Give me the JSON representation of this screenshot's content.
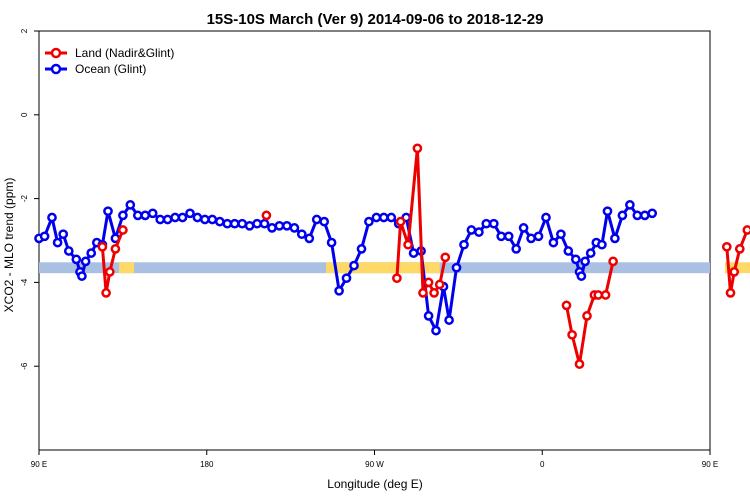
{
  "chart_data": {
    "type": "line",
    "title": "15S-10S March (Ver 9)   2014-09-06 to 2018-12-29",
    "xlabel": "Longitude (deg E)",
    "ylabel": "XCO2 - MLO trend (ppm)",
    "xlim": [
      90,
      450
    ],
    "ylim": [
      -8,
      2
    ],
    "x_ticks": [
      {
        "value": 90,
        "label": "90 E"
      },
      {
        "value": 180,
        "label": "180"
      },
      {
        "value": 270,
        "label": "90 W"
      },
      {
        "value": 360,
        "label": "0"
      },
      {
        "value": 450,
        "label": "90 E"
      },
      {
        "value": 540,
        "label": "180"
      }
    ],
    "y_ticks": [
      {
        "value": 2,
        "label": "2"
      },
      {
        "value": 0,
        "label": "0"
      },
      {
        "value": -2,
        "label": "-2"
      },
      {
        "value": -4,
        "label": "-4"
      },
      {
        "value": -6,
        "label": "-6"
      }
    ],
    "legend_position": "top-left",
    "series": [
      {
        "name": "Land (Nadir&Glint)",
        "color": "#ee0000",
        "segments": [
          [
            [
              124,
              -3.15
            ],
            [
              126,
              -4.25
            ],
            [
              128,
              -3.75
            ],
            [
              131,
              -3.2
            ],
            [
              135,
              -2.75
            ]
          ],
          [
            [
              212,
              -2.4
            ]
          ],
          [
            [
              282,
              -3.9
            ],
            [
              284,
              -2.55
            ],
            [
              288,
              -3.1
            ],
            [
              293,
              -0.8
            ],
            [
              296,
              -4.25
            ],
            [
              299,
              -4.0
            ],
            [
              302,
              -4.25
            ],
            [
              305,
              -4.05
            ],
            [
              308,
              -3.4
            ]
          ],
          [
            [
              373,
              -4.55
            ],
            [
              376,
              -5.25
            ],
            [
              380,
              -5.95
            ],
            [
              384,
              -4.8
            ],
            [
              388,
              -4.3
            ],
            [
              390,
              -4.3
            ],
            [
              394,
              -4.3
            ],
            [
              398,
              -3.5
            ]
          ],
          [
            [
              459,
              -3.15
            ],
            [
              461,
              -4.25
            ],
            [
              463,
              -3.75
            ],
            [
              466,
              -3.2
            ],
            [
              470,
              -2.75
            ]
          ]
        ]
      },
      {
        "name": "Ocean (Glint)",
        "color": "#0000ee",
        "segments": [
          [
            [
              90,
              -2.95
            ],
            [
              93,
              -2.9
            ],
            [
              97,
              -2.45
            ],
            [
              100,
              -3.05
            ],
            [
              103,
              -2.85
            ],
            [
              106,
              -3.25
            ],
            [
              110,
              -3.45
            ],
            [
              112,
              -3.75
            ],
            [
              113,
              -3.85
            ],
            [
              115,
              -3.5
            ],
            [
              118,
              -3.3
            ],
            [
              121,
              -3.05
            ],
            [
              124,
              -3.1
            ],
            [
              127,
              -2.3
            ],
            [
              131,
              -2.95
            ],
            [
              135,
              -2.4
            ],
            [
              139,
              -2.15
            ],
            [
              143,
              -2.4
            ],
            [
              147,
              -2.4
            ],
            [
              151,
              -2.35
            ],
            [
              155,
              -2.5
            ],
            [
              159,
              -2.5
            ],
            [
              163,
              -2.45
            ],
            [
              167,
              -2.45
            ],
            [
              171,
              -2.35
            ],
            [
              175,
              -2.45
            ],
            [
              179,
              -2.5
            ],
            [
              183,
              -2.5
            ],
            [
              187,
              -2.55
            ],
            [
              191,
              -2.6
            ],
            [
              195,
              -2.6
            ],
            [
              199,
              -2.6
            ],
            [
              203,
              -2.65
            ],
            [
              207,
              -2.6
            ],
            [
              211,
              -2.6
            ],
            [
              215,
              -2.7
            ],
            [
              219,
              -2.65
            ],
            [
              223,
              -2.65
            ],
            [
              227,
              -2.7
            ],
            [
              231,
              -2.85
            ],
            [
              235,
              -2.95
            ],
            [
              239,
              -2.5
            ],
            [
              243,
              -2.55
            ],
            [
              247,
              -3.05
            ],
            [
              251,
              -4.2
            ],
            [
              255,
              -3.9
            ],
            [
              259,
              -3.6
            ],
            [
              263,
              -3.2
            ],
            [
              267,
              -2.55
            ],
            [
              271,
              -2.45
            ],
            [
              275,
              -2.45
            ],
            [
              279,
              -2.45
            ],
            [
              283,
              -2.6
            ],
            [
              287,
              -2.45
            ],
            [
              291,
              -3.3
            ],
            [
              295,
              -3.25
            ],
            [
              299,
              -4.8
            ],
            [
              303,
              -5.15
            ],
            [
              307,
              -4.1
            ],
            [
              310,
              -4.9
            ],
            [
              314,
              -3.65
            ],
            [
              318,
              -3.1
            ],
            [
              322,
              -2.75
            ],
            [
              326,
              -2.8
            ],
            [
              330,
              -2.6
            ],
            [
              334,
              -2.6
            ],
            [
              338,
              -2.9
            ],
            [
              342,
              -2.9
            ],
            [
              346,
              -3.2
            ],
            [
              350,
              -2.7
            ],
            [
              354,
              -2.95
            ],
            [
              358,
              -2.9
            ],
            [
              362,
              -2.45
            ],
            [
              366,
              -3.05
            ],
            [
              370,
              -2.85
            ],
            [
              374,
              -3.25
            ],
            [
              378,
              -3.45
            ],
            [
              380,
              -3.75
            ],
            [
              381,
              -3.85
            ],
            [
              383,
              -3.5
            ],
            [
              386,
              -3.3
            ],
            [
              389,
              -3.05
            ],
            [
              392,
              -3.1
            ],
            [
              395,
              -2.3
            ],
            [
              399,
              -2.95
            ],
            [
              403,
              -2.4
            ],
            [
              407,
              -2.15
            ],
            [
              411,
              -2.4
            ],
            [
              415,
              -2.4
            ],
            [
              419,
              -2.35
            ]
          ]
        ]
      }
    ]
  }
}
